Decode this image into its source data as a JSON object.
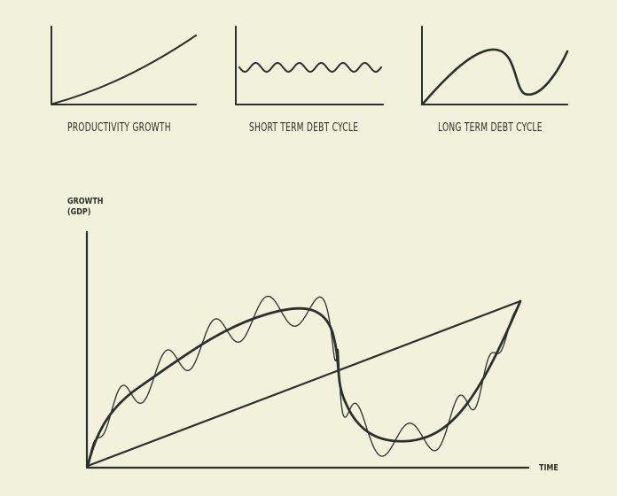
{
  "mini_charts": [
    {
      "id": "productivity",
      "label": "PRODUCTIVITY GROWTH"
    },
    {
      "id": "short",
      "label": "SHORT TERM DEBT CYCLE"
    },
    {
      "id": "long",
      "label": "LONG TERM DEBT CYCLE"
    }
  ],
  "main_chart": {
    "y_label_line1": "GROWTH",
    "y_label_line2": "(GDP)",
    "x_label": "TIME"
  },
  "colors": {
    "background": "#f2f2dc",
    "ink": "#2c302c"
  }
}
